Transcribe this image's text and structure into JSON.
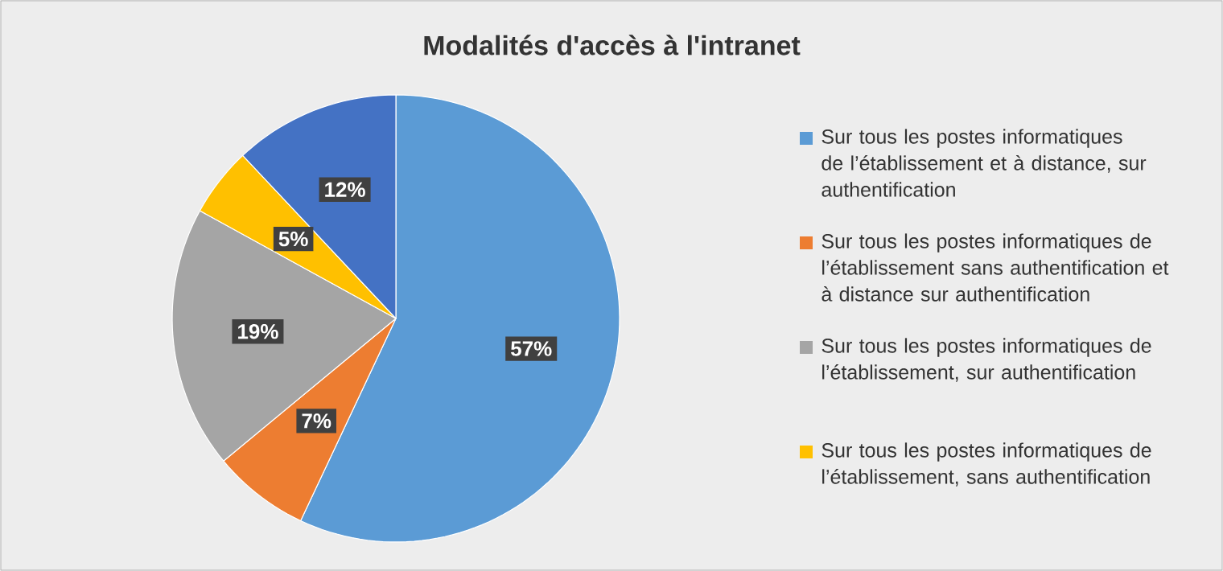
{
  "chart_data": {
    "type": "pie",
    "title": "Modalités d'accès à l'intranet",
    "categories": [
      "Sur tous les postes informatiques de l’établissement et à distance, sur authentification",
      "Sur tous les postes informatiques de l’établissement sans authentification et à distance sur authentification",
      "Sur tous les postes informatiques de l’établissement, sur authentification",
      "Sur tous les postes informatiques de l’établissement, sans authentification",
      null
    ],
    "values": [
      57,
      7,
      19,
      5,
      12
    ],
    "colors": [
      "#5b9bd5",
      "#ed7d31",
      "#a5a5a5",
      "#ffc000",
      "#4472c4"
    ],
    "value_labels": [
      "57%",
      "7%",
      "19%",
      "5%",
      "12%"
    ],
    "legend": "right"
  }
}
